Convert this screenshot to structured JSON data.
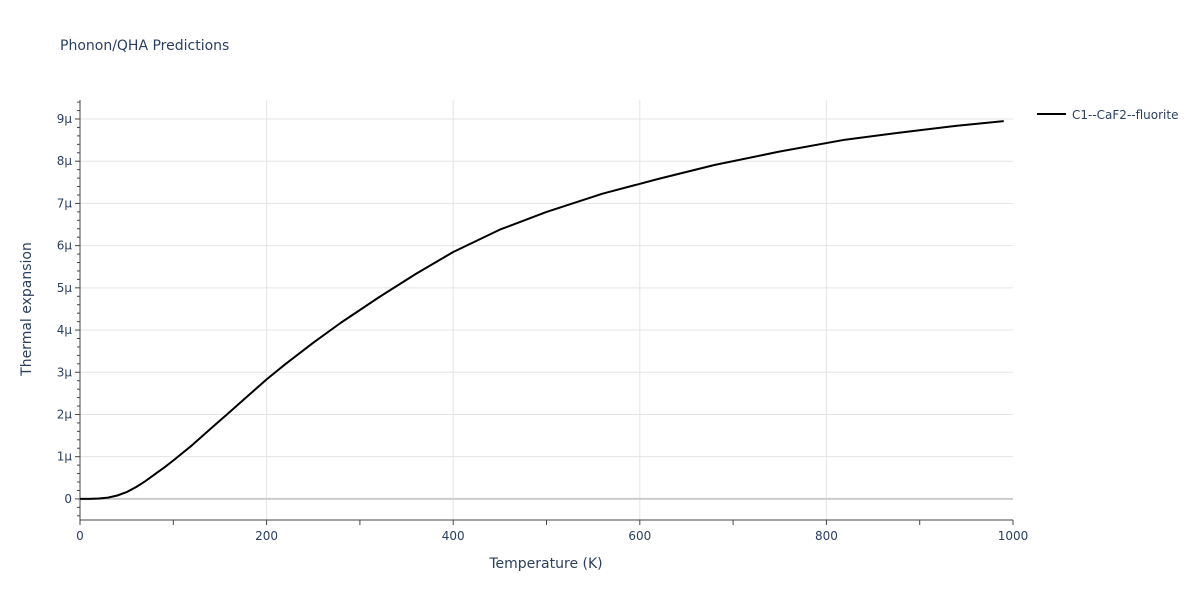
{
  "chart_data": {
    "type": "line",
    "title": "Phonon/QHA Predictions",
    "xlabel": "Temperature (K)",
    "ylabel": "Thermal expansion",
    "xlim": [
      0,
      1000
    ],
    "ylim": [
      -0.5,
      9.45
    ],
    "y_unit_suffix": "μ",
    "x_ticks": [
      0,
      200,
      400,
      600,
      800,
      1000
    ],
    "x_tick_labels": [
      "0",
      "200",
      "400",
      "600",
      "800",
      "1000"
    ],
    "y_ticks": [
      0,
      1,
      2,
      3,
      4,
      5,
      6,
      7,
      8,
      9
    ],
    "y_tick_labels": [
      "0",
      "1μ",
      "2μ",
      "3μ",
      "4μ",
      "5μ",
      "6μ",
      "7μ",
      "8μ",
      "9μ"
    ],
    "grid": true,
    "legend_position": "top-right",
    "series": [
      {
        "name": "C1--CaF2--fluorite",
        "color": "#000000",
        "x": [
          0,
          10,
          20,
          30,
          40,
          50,
          60,
          70,
          80,
          90,
          100,
          120,
          140,
          160,
          180,
          200,
          220,
          250,
          280,
          320,
          360,
          400,
          450,
          500,
          560,
          620,
          680,
          750,
          820,
          880,
          940,
          990
        ],
        "y": [
          0,
          0,
          0.01,
          0.03,
          0.08,
          0.16,
          0.28,
          0.42,
          0.58,
          0.74,
          0.91,
          1.27,
          1.66,
          2.05,
          2.44,
          2.83,
          3.19,
          3.7,
          4.18,
          4.77,
          5.33,
          5.85,
          6.38,
          6.8,
          7.23,
          7.58,
          7.91,
          8.23,
          8.51,
          8.68,
          8.84,
          8.95
        ]
      }
    ]
  }
}
